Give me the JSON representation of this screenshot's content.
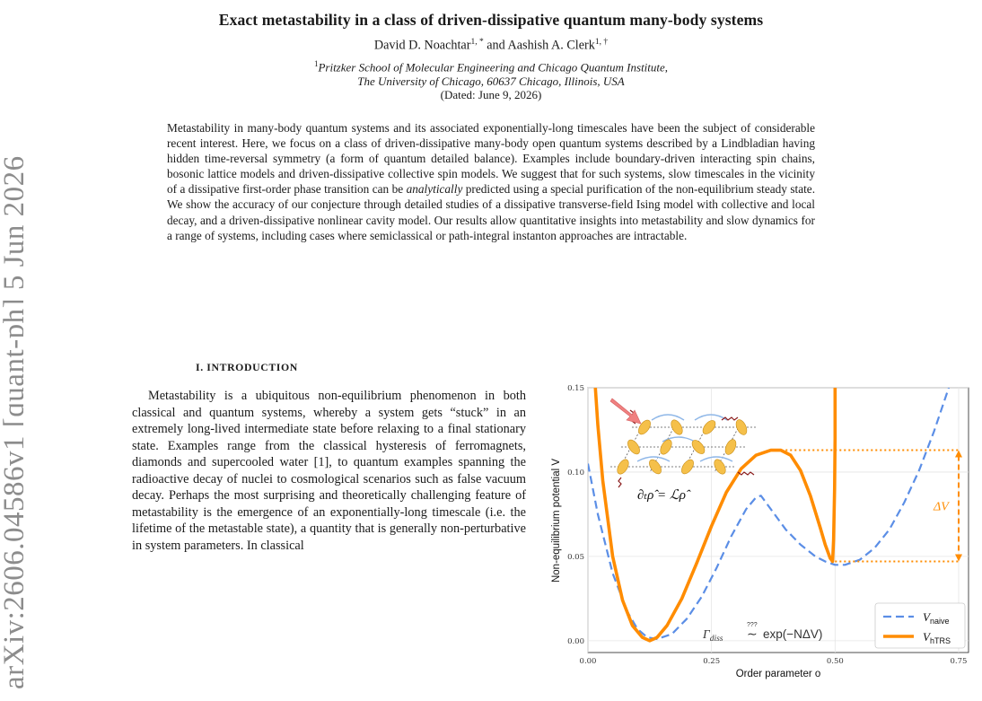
{
  "paper": {
    "title": "Exact metastability in a class of driven-dissipative quantum many-body systems",
    "author1_name": "David D. Noachtar",
    "author1_marks": "1, *",
    "authors_and": "and",
    "author2_name": "Aashish A. Clerk",
    "author2_marks": "1, †",
    "affil_mark": "1",
    "affil_line1": "Pritzker School of Molecular Engineering and Chicago Quantum Institute,",
    "affil_line2": "The University of Chicago, 60637 Chicago, Illinois, USA",
    "date": "(Dated: June 9, 2026)",
    "arxiv_stamp": "arXiv:2606.04586v1  [quant-ph]  5 Jun 2026",
    "abstract_before_em": "Metastability in many-body quantum systems and its associated exponentially-long timescales have been the subject of considerable recent interest. Here, we focus on a class of driven-dissipative many-body open quantum systems described by a Lindbladian having hidden time-reversal symmetry (a form of quantum detailed balance). Examples include boundary-driven interacting spin chains, bosonic lattice models and driven-dissipative collective spin models. We suggest that for such systems, slow timescales in the vicinity of a dissipative first-order phase transition can be",
    "abstract_em": "analytically",
    "abstract_after_em": "predicted using a special purification of the non-equilibrium steady state. We show the accuracy of our conjecture through detailed studies of a dissipative transverse-field Ising model with collective and local decay, and a driven-dissipative nonlinear cavity model. Our results allow quantitative insights into metastability and slow dynamics for a range of systems, including cases where semiclassical or path-integral instanton approaches are intractable.",
    "section_heading": "I.   INTRODUCTION",
    "intro_paragraph": "Metastability is a ubiquitous non-equilibrium phenomenon in both classical and quantum systems, whereby a system gets “stuck” in an extremely long-lived intermediate state before relaxing to a final stationary state. Examples range from the classical hysteresis of ferromagnets, diamonds and supercooled water [1], to quantum examples spanning the radioactive decay of nuclei to cosmological scenarios such as false vacuum decay. Perhaps the most surprising and theoretically challenging feature of metastability is the emergence of an exponentially-long timescale (i.e. the lifetime of the metastable state), a quantity that is generally non-perturbative in system parameters. In classical"
  },
  "figure": {
    "inset_equation": "∂ₜρ̂ = ℒρ̂",
    "delta_v_label": "ΔV",
    "gamma_formula_left": "Γ",
    "gamma_formula_sub": "diss",
    "gamma_formula_marks": "???",
    "gamma_formula_tilde": "∼",
    "gamma_formula_right": "exp(−NΔV)",
    "colors": {
      "naive": "#5b8ee6",
      "htrs": "#ff8c00",
      "inset_spin": "#f5c04a",
      "inset_arrow": "#f08080",
      "grid": "#e4e4e4"
    }
  },
  "chart_data": {
    "type": "line",
    "xlabel": "Order parameter o",
    "ylabel": "Non-equilibrium potential V",
    "xlim": [
      0,
      0.77
    ],
    "ylim": [
      -0.007,
      0.15
    ],
    "x_ticks": [
      "0.00",
      "0.25",
      "0.50",
      "0.75"
    ],
    "y_ticks": [
      "0.00",
      "0.05",
      "0.10",
      "0.15"
    ],
    "grid": true,
    "legend_position": "bottom-right",
    "series": [
      {
        "name": "V_naive",
        "legend_base": "V",
        "legend_sub": "naive",
        "style": "dashed",
        "color": "#5b8ee6",
        "x": [
          0.0,
          0.02,
          0.05,
          0.08,
          0.1,
          0.12,
          0.14,
          0.17,
          0.2,
          0.23,
          0.26,
          0.29,
          0.32,
          0.34,
          0.35,
          0.37,
          0.4,
          0.43,
          0.46,
          0.48,
          0.5,
          0.52,
          0.55,
          0.58,
          0.61,
          0.64,
          0.67,
          0.7,
          0.73
        ],
        "y": [
          0.105,
          0.075,
          0.04,
          0.017,
          0.007,
          0.002,
          0.001,
          0.004,
          0.013,
          0.026,
          0.043,
          0.062,
          0.078,
          0.085,
          0.086,
          0.078,
          0.066,
          0.057,
          0.05,
          0.047,
          0.045,
          0.045,
          0.048,
          0.055,
          0.066,
          0.082,
          0.101,
          0.124,
          0.15
        ]
      },
      {
        "name": "V_hTRS",
        "legend_base": "V",
        "legend_sub": "hTRS",
        "style": "solid",
        "color": "#ff8c00",
        "x": [
          0.015,
          0.02,
          0.03,
          0.05,
          0.07,
          0.09,
          0.11,
          0.125,
          0.14,
          0.16,
          0.19,
          0.22,
          0.25,
          0.28,
          0.31,
          0.34,
          0.37,
          0.39,
          0.41,
          0.43,
          0.45,
          0.47,
          0.48,
          0.49,
          0.495,
          0.497,
          0.499,
          0.5,
          0.5
        ],
        "y": [
          0.15,
          0.128,
          0.095,
          0.05,
          0.024,
          0.009,
          0.002,
          0.0,
          0.002,
          0.009,
          0.025,
          0.046,
          0.068,
          0.088,
          0.102,
          0.11,
          0.113,
          0.113,
          0.11,
          0.101,
          0.086,
          0.067,
          0.057,
          0.049,
          0.047,
          0.06,
          0.09,
          0.12,
          0.15
        ]
      }
    ],
    "annotations": [
      {
        "type": "delta_bracket",
        "x": 0.75,
        "y_top": 0.113,
        "y_bottom": 0.047
      }
    ]
  }
}
